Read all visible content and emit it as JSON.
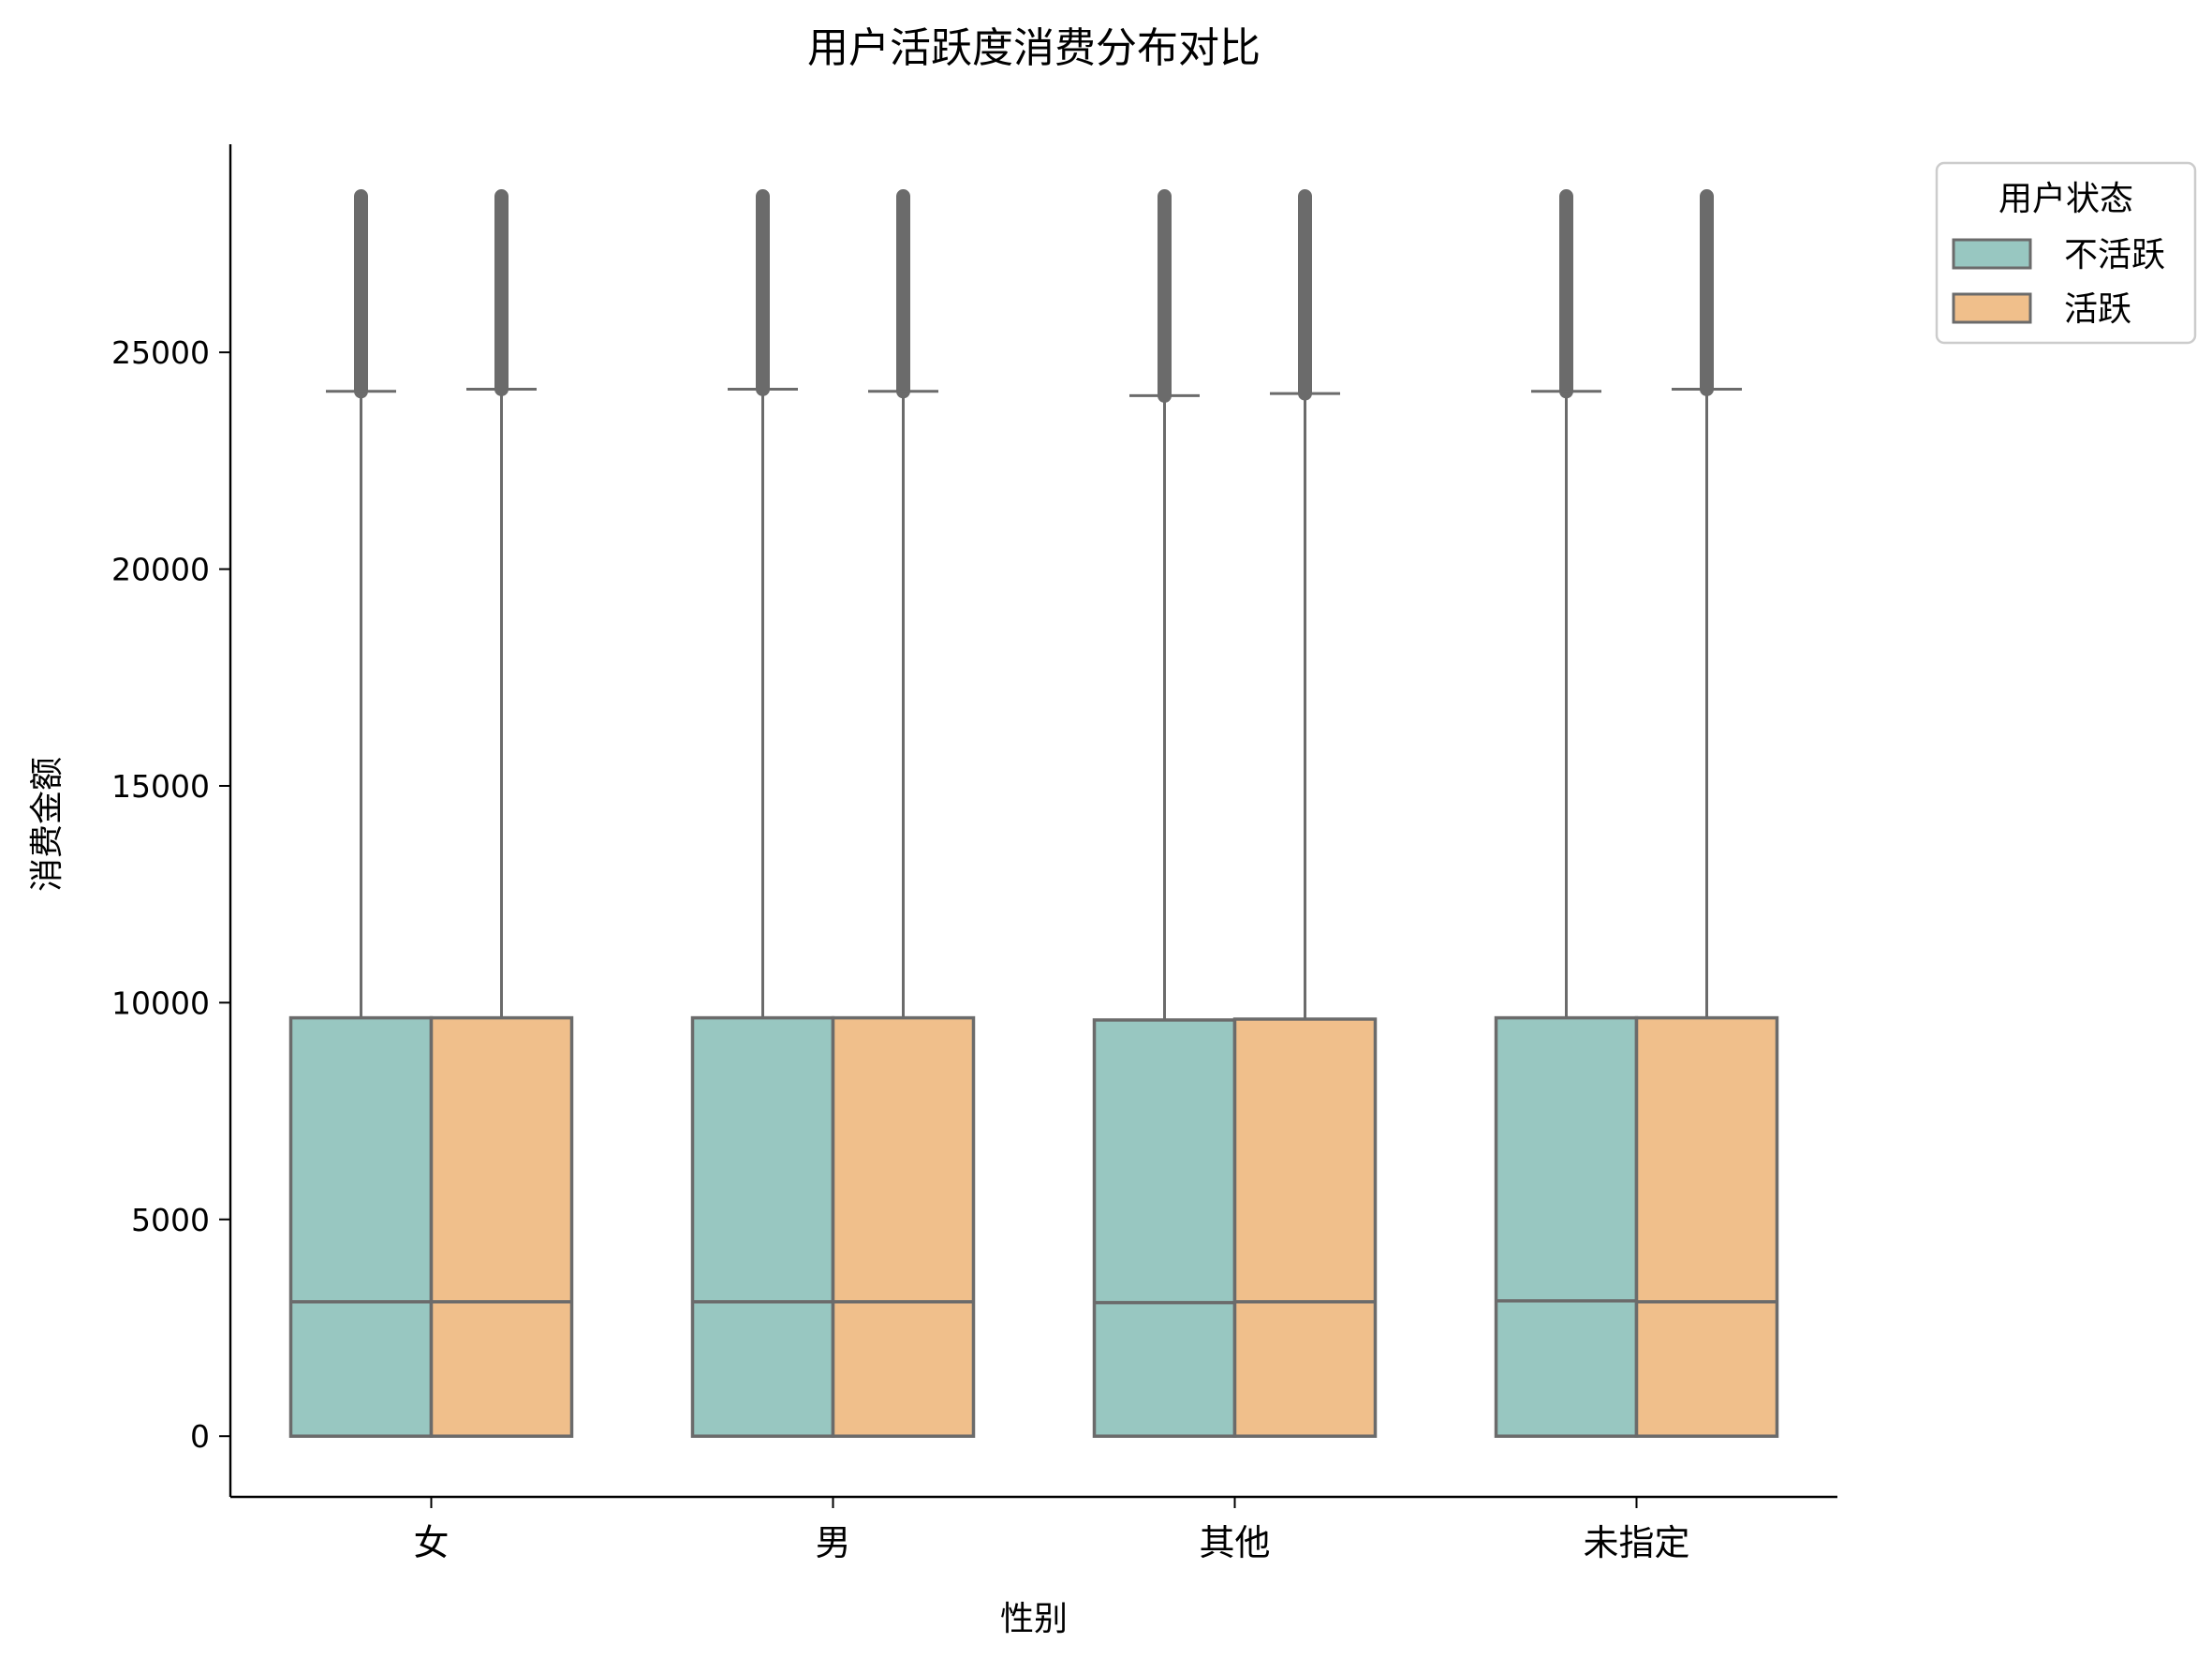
{
  "chart_data": {
    "type": "box",
    "title": "用户活跃度消费分布对比",
    "xlabel": "性别",
    "ylabel": "消费金额",
    "categories": [
      "女",
      "男",
      "其他",
      "未指定"
    ],
    "yticks": [
      0,
      5000,
      10000,
      15000,
      20000,
      25000
    ],
    "ylim": [
      -1400,
      29800
    ],
    "grid": false,
    "legend": {
      "title": "用户状态",
      "placement": "top-right-outside"
    },
    "series": [
      {
        "name": "不活跃",
        "color": "#98c7c1",
        "boxes": [
          {
            "min": 0,
            "q1": 0,
            "median": 3100,
            "q3": 9650,
            "whisker_high": 24100,
            "outlier_max": 28600
          },
          {
            "min": 0,
            "q1": 0,
            "median": 3100,
            "q3": 9650,
            "whisker_high": 24150,
            "outlier_max": 28600
          },
          {
            "min": 0,
            "q1": 0,
            "median": 3080,
            "q3": 9600,
            "whisker_high": 24000,
            "outlier_max": 28600
          },
          {
            "min": 0,
            "q1": 0,
            "median": 3120,
            "q3": 9650,
            "whisker_high": 24100,
            "outlier_max": 28600
          }
        ]
      },
      {
        "name": "活跃",
        "color": "#f0bf8b",
        "boxes": [
          {
            "min": 0,
            "q1": 0,
            "median": 3100,
            "q3": 9650,
            "whisker_high": 24150,
            "outlier_max": 28600
          },
          {
            "min": 0,
            "q1": 0,
            "median": 3100,
            "q3": 9650,
            "whisker_high": 24100,
            "outlier_max": 28600
          },
          {
            "min": 0,
            "q1": 0,
            "median": 3100,
            "q3": 9620,
            "whisker_high": 24050,
            "outlier_max": 28600
          },
          {
            "min": 0,
            "q1": 0,
            "median": 3100,
            "q3": 9650,
            "whisker_high": 24150,
            "outlier_max": 28600
          }
        ]
      }
    ]
  }
}
